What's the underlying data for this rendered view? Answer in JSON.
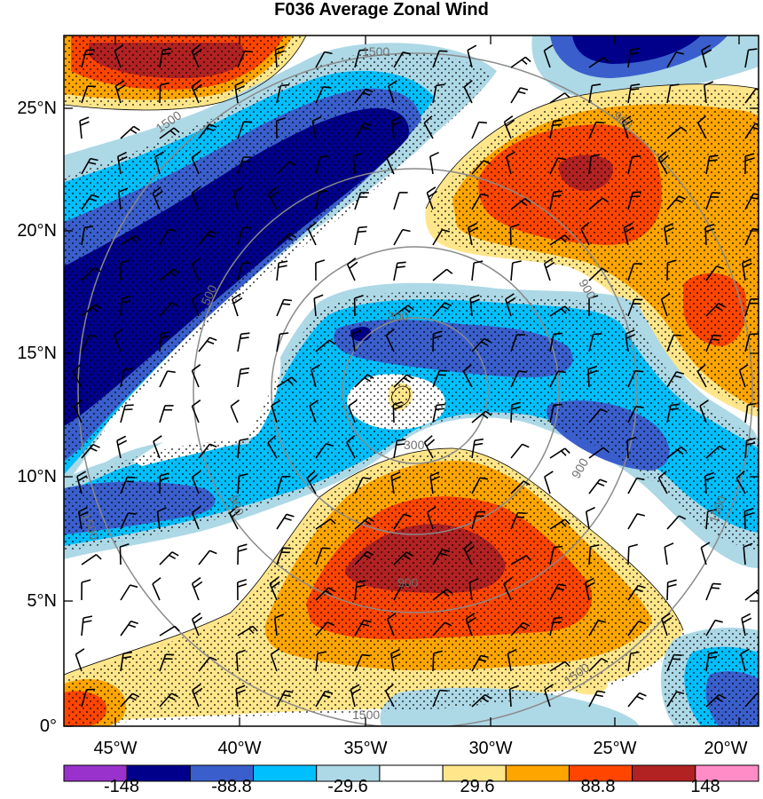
{
  "title": "F036 Average Zonal Wind",
  "lat_labels": [
    "25°N",
    "20°N",
    "15°N",
    "10°N",
    "5°N",
    "0°"
  ],
  "lon_labels": [
    "45°W",
    "40°W",
    "35°W",
    "30°W",
    "25°W",
    "20°W"
  ],
  "colorbar": {
    "colors": [
      "#9932CC",
      "#00008B",
      "#3A5FCD",
      "#00BFFF",
      "#ADD8E6",
      "#FFFFFF",
      "#FFE68A",
      "#FFA500",
      "#FF4500",
      "#B22222",
      "#FF8CC6"
    ],
    "labels": [
      "-148",
      "-88.8",
      "-29.6",
      "29.6",
      "88.8",
      "148"
    ]
  },
  "contour_labels": [
    "1500",
    "1500",
    "900",
    "500",
    "300",
    "900",
    "300",
    "900",
    "900",
    "900",
    "1500",
    "1500",
    "1500",
    "1500"
  ],
  "colors": {
    "dark_blue": "#00008B",
    "mid_blue": "#3A5FCD",
    "cyan": "#00BFFF",
    "light_blue": "#ADD8E6",
    "yellow": "#FFE68A",
    "orange": "#FFA500",
    "red_orange": "#FF4500",
    "dark_red": "#B22222",
    "range_rings": "#8A8A8A"
  }
}
